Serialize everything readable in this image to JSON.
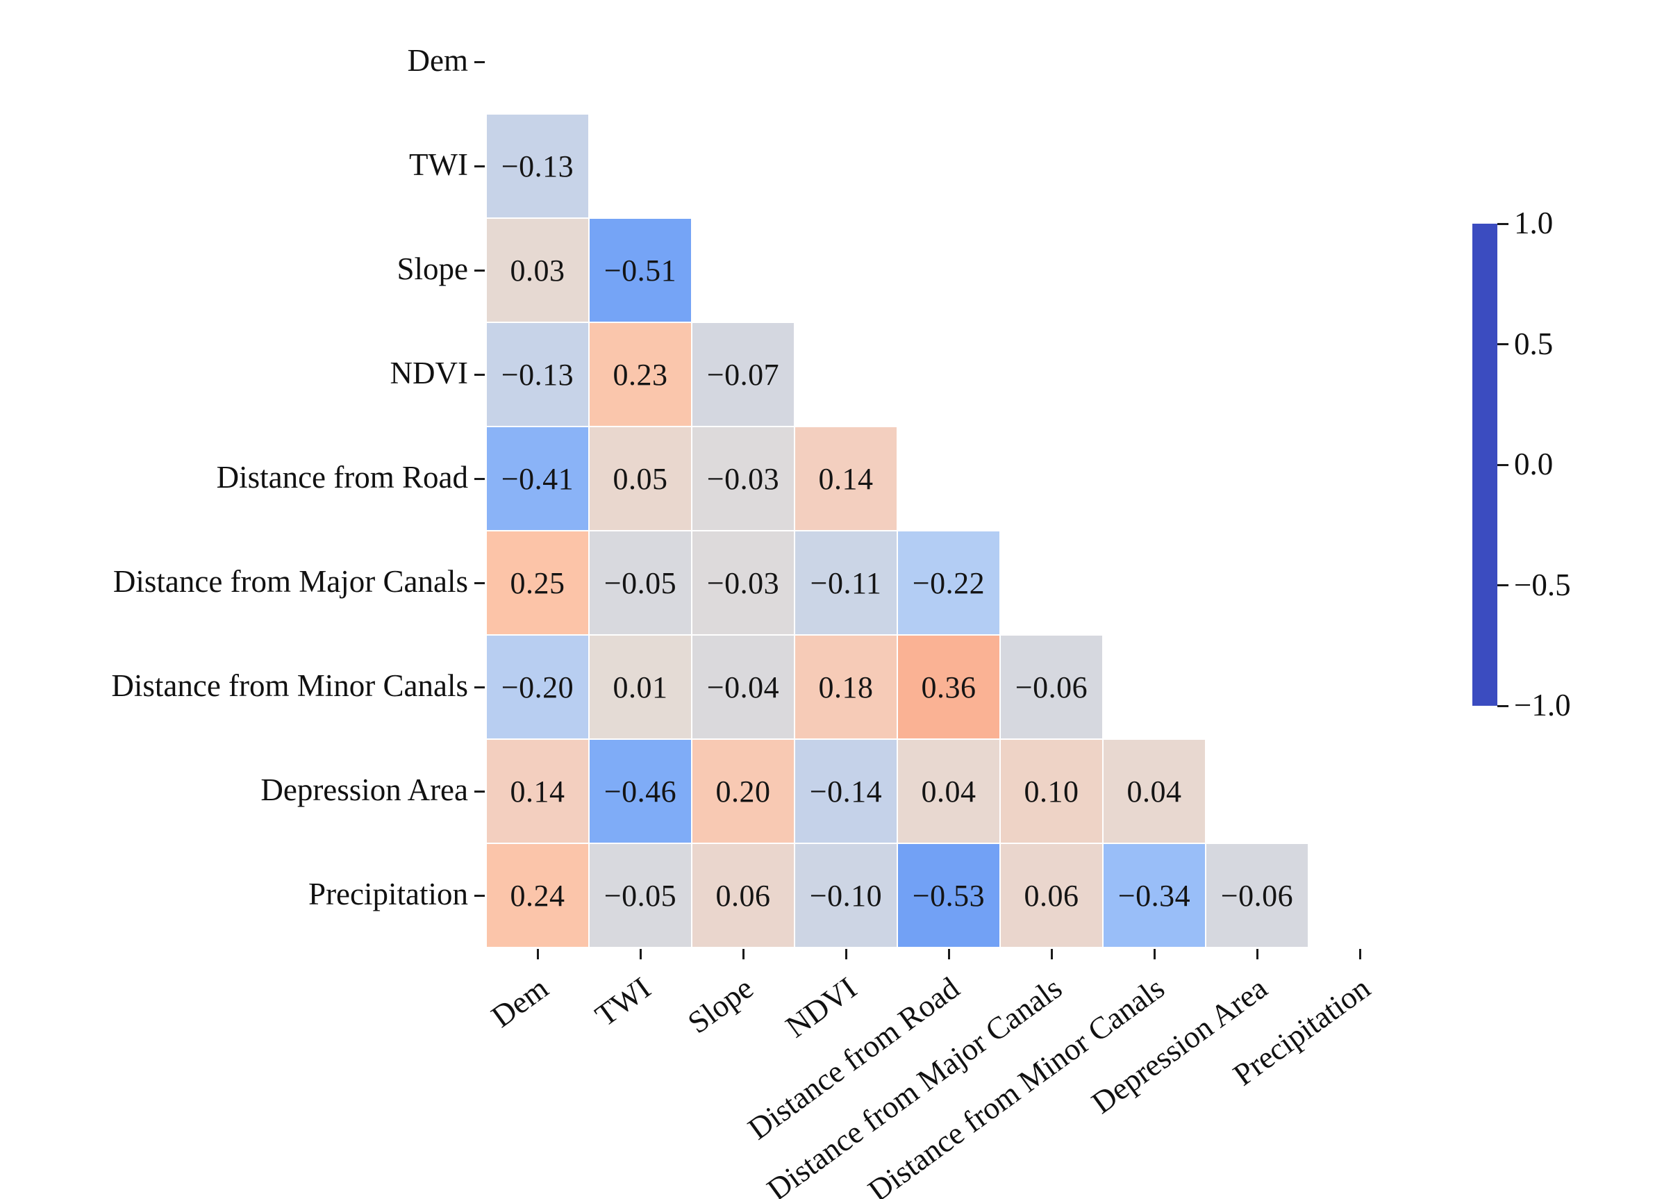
{
  "chart_data": {
    "type": "heatmap",
    "title": "",
    "description": "Lower-triangle correlation matrix heatmap (diagonal and upper triangle masked)",
    "variables": [
      "Dem",
      "TWI",
      "Slope",
      "NDVI",
      "Distance from Road",
      "Distance from Major Canals",
      "Distance from Minor Canals",
      "Depression Area",
      "Precipitation"
    ],
    "matrix_lower_triangle": [
      [],
      [
        -0.13
      ],
      [
        0.03,
        -0.51
      ],
      [
        -0.13,
        0.23,
        -0.07
      ],
      [
        -0.41,
        0.05,
        -0.03,
        0.14
      ],
      [
        0.25,
        -0.05,
        -0.03,
        -0.11,
        -0.22
      ],
      [
        -0.2,
        0.01,
        -0.04,
        0.18,
        0.36,
        -0.06
      ],
      [
        0.14,
        -0.46,
        0.2,
        -0.14,
        0.04,
        0.1,
        0.04
      ],
      [
        0.24,
        -0.05,
        0.06,
        -0.1,
        -0.53,
        0.06,
        -0.34,
        -0.06
      ]
    ],
    "value_range": [
      -1,
      1
    ],
    "grid_on": false,
    "mask": "upper-triangle-and-diagonal",
    "colorbar": {
      "position": "right",
      "tick_values": [
        1.0,
        0.5,
        0.0,
        -0.5,
        -1.0
      ],
      "tick_labels": [
        "1.0",
        "0.5",
        "0.0",
        "−0.5",
        "−1.0"
      ]
    },
    "colormap": {
      "name": "coolwarm",
      "anchors": [
        [
          -1.0,
          "#3b4cc0"
        ],
        [
          -0.75,
          "#557be3"
        ],
        [
          -0.5,
          "#76a6f7"
        ],
        [
          -0.25,
          "#adcbf8"
        ],
        [
          0.0,
          "#e3dcd7"
        ],
        [
          0.15,
          "#f4cebd"
        ],
        [
          0.25,
          "#fcc4a8"
        ],
        [
          0.5,
          "#f79a7a"
        ],
        [
          0.75,
          "#e2674f"
        ],
        [
          1.0,
          "#b40426"
        ]
      ]
    },
    "colors": {
      "background": "#ffffff",
      "grid_line": "#ffffff",
      "cell_text": "#141414",
      "tick_mark": "#1a1a1a"
    }
  }
}
